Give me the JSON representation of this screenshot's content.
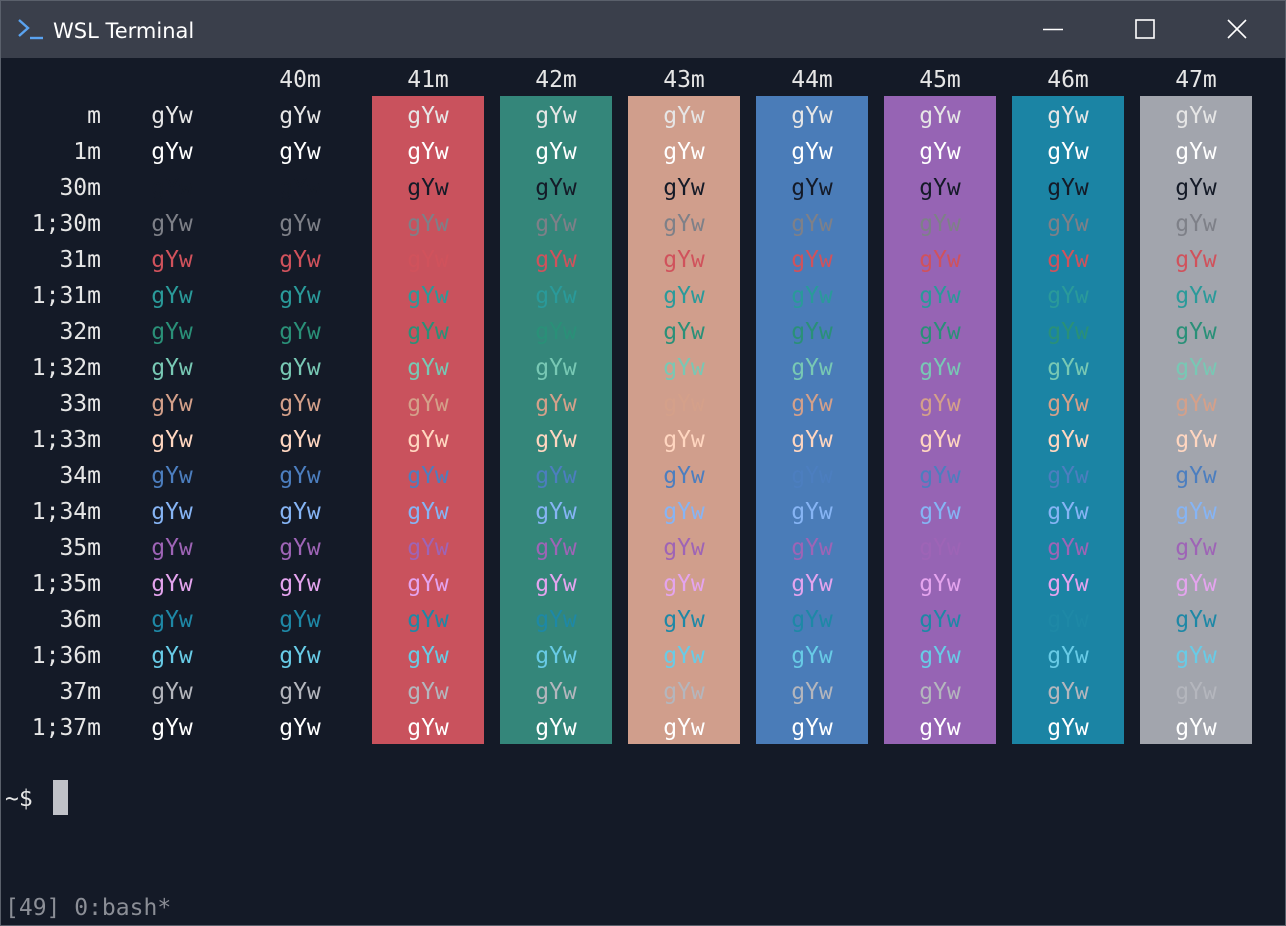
{
  "window": {
    "title": "WSL Terminal",
    "icon": "terminal-prompt-icon",
    "controls": [
      "minimize-icon",
      "maximize-icon",
      "close-icon"
    ]
  },
  "sample_text": "gYw",
  "columns": [
    "",
    "40m",
    "41m",
    "42m",
    "43m",
    "44m",
    "45m",
    "46m",
    "47m"
  ],
  "rows": [
    "m",
    "1m",
    "30m",
    "1;30m",
    "31m",
    "1;31m",
    "32m",
    "1;32m",
    "33m",
    "1;33m",
    "34m",
    "1;34m",
    "35m",
    "1;35m",
    "36m",
    "1;36m",
    "37m",
    "1;37m"
  ],
  "colors": {
    "terminal_bg": "#141a27",
    "titlebar_bg": "#3a3f4b",
    "backgrounds": {
      "41m": "#c9525d",
      "42m": "#34867a",
      "43m": "#d09e8c",
      "44m": "#4a7cb8",
      "45m": "#9664b4",
      "46m": "#1b84a4",
      "47m": "#a2a5ad"
    },
    "foregrounds": {
      "m": "#e6e6e6",
      "1m": "#ffffff",
      "30m": "#141a27",
      "1;30m": "#7e8088",
      "31m": "#d0525c",
      "1;31m": "#2a9a9a",
      "32m": "#2a9078",
      "1;32m": "#78c8b4",
      "33m": "#d4a08a",
      "1;33m": "#ffd6c0",
      "34m": "#4c7ebf",
      "1;34m": "#86b4f4",
      "35m": "#9e64b6",
      "1;35m": "#e4a4ee",
      "36m": "#1e88a6",
      "1;36m": "#68cbe6",
      "37m": "#b4b6bd",
      "1;37m": "#ffffff"
    }
  },
  "prompt": "~$",
  "status_bar": "[49] 0:bash*"
}
